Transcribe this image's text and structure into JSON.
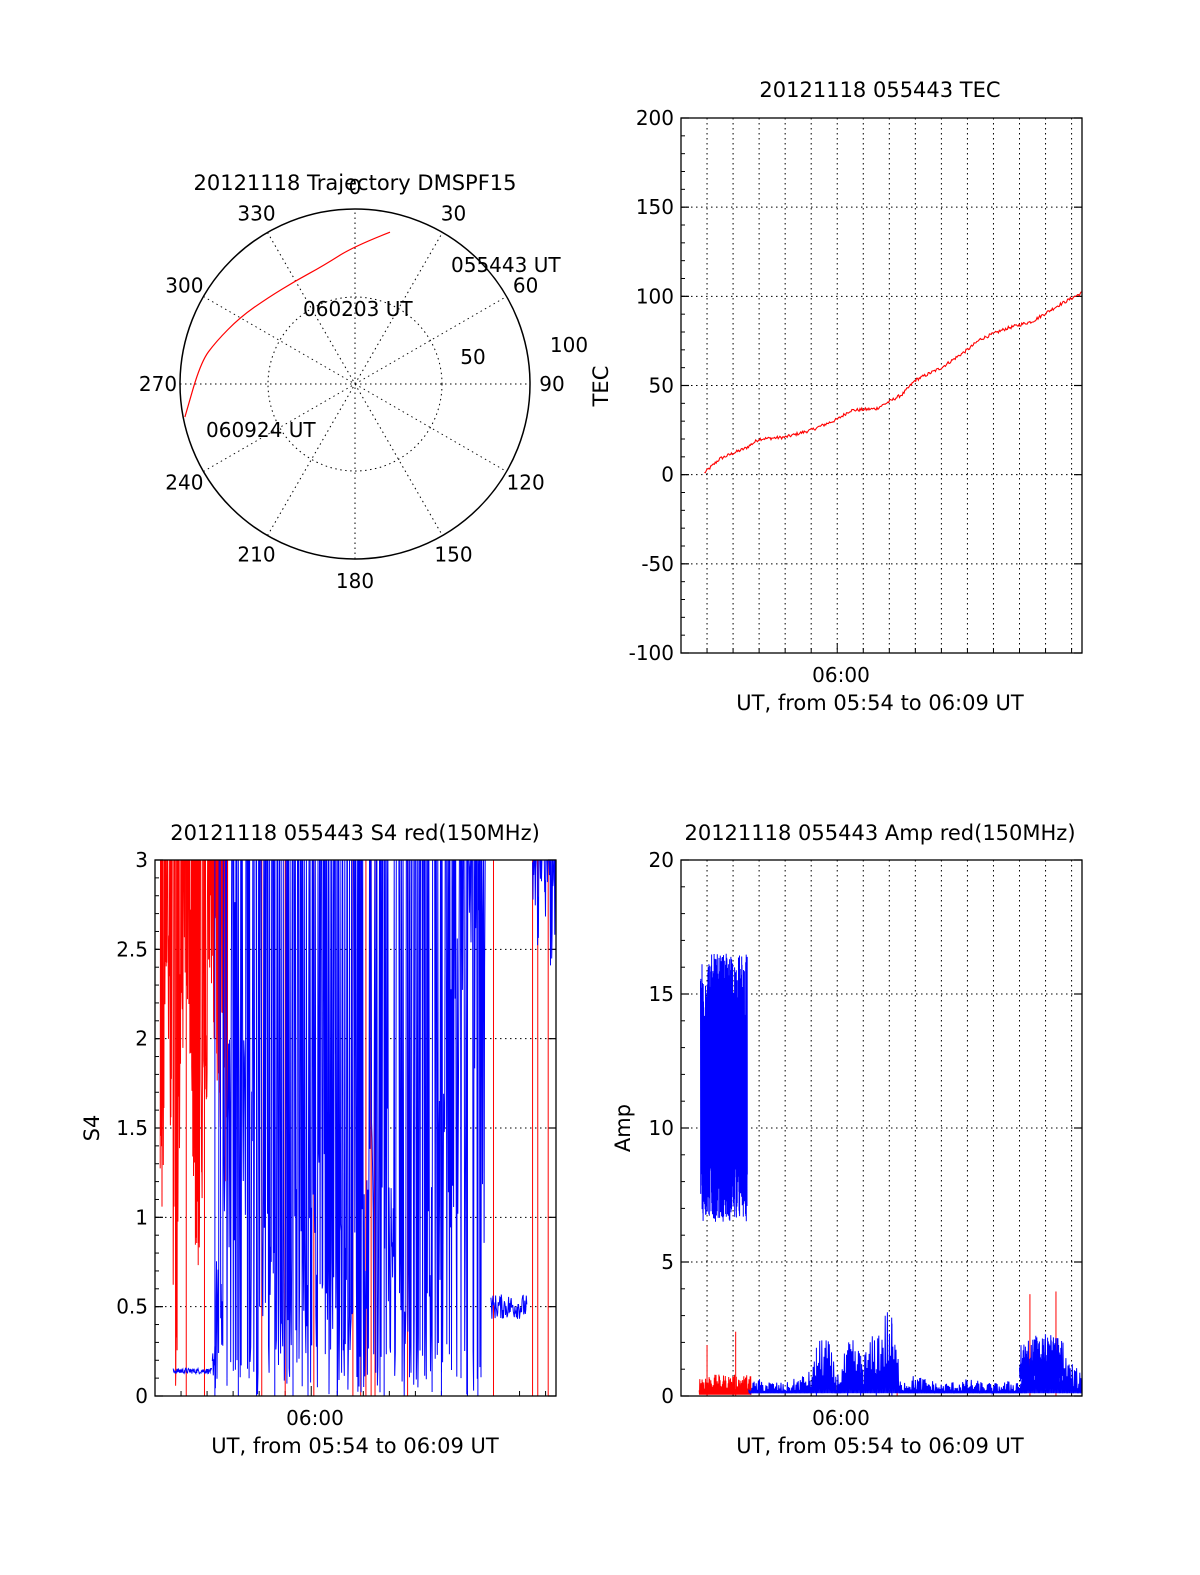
{
  "colors": {
    "red": "#ff0000",
    "blue": "#0000ff",
    "axis": "#000000"
  },
  "chart_data": [
    {
      "type": "polar",
      "title": "20121118 Trajectory DMSPF15",
      "azimuth_labels": [
        "0",
        "30",
        "60",
        "90",
        "120",
        "150",
        "180",
        "210",
        "240",
        "270",
        "300",
        "330"
      ],
      "radius_labels": [
        "50",
        "100"
      ],
      "trajectory_labels": [
        "055443 UT",
        "060203 UT",
        "060924 UT"
      ],
      "trajectory": [
        {
          "az": 13,
          "zen": 89,
          "label": "055443 UT"
        },
        {
          "az": 360,
          "zen": 79
        },
        {
          "az": 345,
          "zen": 70
        },
        {
          "az": 330,
          "zen": 68
        },
        {
          "az": 315,
          "zen": 70
        },
        {
          "az": 300,
          "zen": 76
        },
        {
          "az": 287,
          "zen": 83
        },
        {
          "az": 278,
          "zen": 89
        },
        {
          "az": 259,
          "zen": 99
        }
      ],
      "line_color": "#ff0000"
    },
    {
      "type": "line",
      "title": "20121118 055443 TEC",
      "ylabel": "TEC",
      "xlabel": "UT, from 05:54 to 06:09 UT",
      "xtick_label": "06:00",
      "x_unit": "minutes after 05:54",
      "xlim": [
        0,
        15.4
      ],
      "ylim": [
        -100,
        200
      ],
      "yticks": [
        "-100",
        "-50",
        "0",
        "50",
        "100",
        "150",
        "200"
      ],
      "grid": true,
      "series": [
        {
          "color": "#ff0000",
          "x": [
            0.9,
            1.5,
            2.5,
            3.0,
            4.0,
            5.0,
            6.0,
            6.5,
            7.5,
            8.5,
            9.0,
            10.0,
            11.0,
            11.5,
            12.5,
            13.5,
            14.5,
            15.4
          ],
          "y": [
            1,
            9,
            15,
            20,
            21,
            25,
            31,
            36,
            37,
            45,
            53,
            60,
            70,
            76,
            82,
            86,
            95,
            102
          ]
        }
      ]
    },
    {
      "type": "line",
      "title": "20121118 055443 S4 red(150MHz)",
      "ylabel": "S4",
      "xlabel": "UT, from 05:54 to 06:09 UT",
      "xtick_label": "06:00",
      "x_unit": "minutes after 05:54",
      "xlim": [
        0,
        15.4
      ],
      "ylim": [
        0,
        3
      ],
      "yticks": [
        "0",
        "0.5",
        "1",
        "1.5",
        "2",
        "2.5",
        "3"
      ],
      "grid": true,
      "series": [
        {
          "color": "#ff0000",
          "x": [
            0.2,
            0.5,
            0.8,
            1.0,
            1.3,
            1.6,
            2.0,
            2.2,
            2.6,
            3.0,
            5.0,
            7.8,
            8.0,
            8.2,
            8.4,
            13.0,
            14.5,
            14.7
          ],
          "y": [
            1.6,
            3,
            0.5,
            2.8,
            3,
            1.4,
            2.5,
            3,
            2.1,
            1.8,
            3,
            1.5,
            3,
            1.2,
            2.8,
            0.8,
            0.2,
            0.1
          ]
        },
        {
          "color": "#0000ff",
          "x": [
            0.0,
            0.5,
            1.0,
            1.5,
            2.0,
            2.2,
            3.0,
            3.5,
            4.5,
            5.5,
            6.5,
            7.5,
            8.5,
            10.0,
            11.5,
            12.5,
            13.0,
            13.5,
            14.0,
            14.5,
            15.0
          ],
          "y": [
            0.14,
            0.15,
            0.14,
            0.15,
            0.14,
            0.15,
            2.2,
            1.5,
            0.6,
            0.9,
            1.1,
            0.5,
            1.5,
            0.3,
            1.8,
            2.5,
            0.5,
            0.55,
            0.5,
            0.45,
            2.8
          ]
        }
      ]
    },
    {
      "type": "line",
      "title": "20121118 055443 Amp red(150MHz)",
      "ylabel": "Amp",
      "xlabel": "UT, from 05:54 to 06:09 UT",
      "xtick_label": "06:00",
      "x_unit": "minutes after 05:54",
      "xlim": [
        0,
        15.4
      ],
      "ylim": [
        0,
        20
      ],
      "yticks": [
        "0",
        "5",
        "10",
        "15",
        "20"
      ],
      "grid": true,
      "series": [
        {
          "color": "#ff0000",
          "x": [
            0.7,
            1.0,
            1.5,
            2.0,
            2.5,
            3.0,
            8.0,
            8.5,
            13.0,
            13.5,
            14.0,
            14.5,
            15.0
          ],
          "y": [
            0.3,
            1.9,
            0.4,
            0.5,
            2.4,
            0.3,
            0.5,
            1.3,
            0.2,
            3.8,
            0.4,
            3.9,
            0.3
          ]
        },
        {
          "color": "#0000ff",
          "x": [
            0.7,
            1.0,
            1.5,
            2.0,
            2.5,
            2.6,
            3.0,
            4.0,
            5.0,
            5.5,
            6.0,
            6.5,
            7.0,
            8.0,
            8.5,
            9.0,
            10.0,
            11.0,
            12.0,
            13.0,
            13.5,
            14.0,
            14.5,
            15.0,
            15.4
          ],
          "y": [
            12,
            13,
            11.5,
            12,
            11,
            0.3,
            0.4,
            0.3,
            0.6,
            1.7,
            0.5,
            1.4,
            1.0,
            2.2,
            0.4,
            0.5,
            0.3,
            0.4,
            0.3,
            0.4,
            1.4,
            1.6,
            1.3,
            0.8,
            0.5
          ]
        }
      ]
    }
  ]
}
